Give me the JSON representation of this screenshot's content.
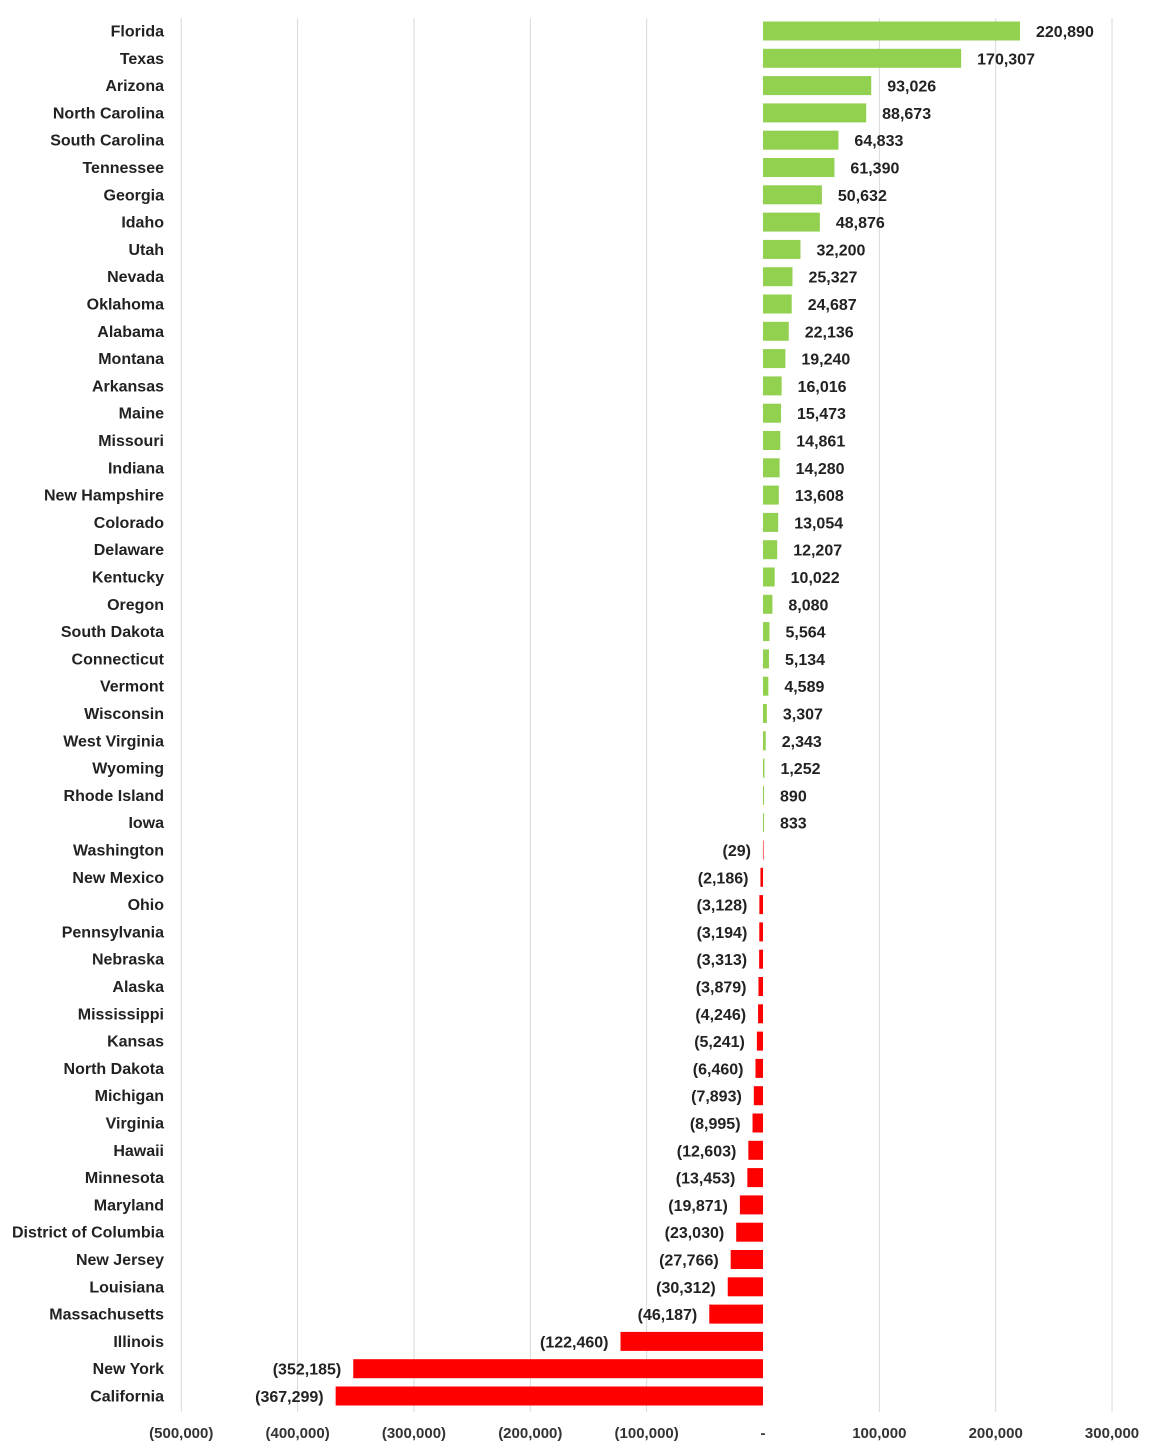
{
  "chart_data": {
    "type": "bar",
    "orientation": "horizontal",
    "title": "",
    "xlabel": "",
    "ylabel": "",
    "xlim": [
      -500000,
      300000
    ],
    "grid": true,
    "legend": "none",
    "colors": {
      "positive": "#92d050",
      "negative": "#ff0000"
    },
    "categories": [
      "Florida",
      "Texas",
      "Arizona",
      "North Carolina",
      "South Carolina",
      "Tennessee",
      "Georgia",
      "Idaho",
      "Utah",
      "Nevada",
      "Oklahoma",
      "Alabama",
      "Montana",
      "Arkansas",
      "Maine",
      "Missouri",
      "Indiana",
      "New Hampshire",
      "Colorado",
      "Delaware",
      "Kentucky",
      "Oregon",
      "South Dakota",
      "Connecticut",
      "Vermont",
      "Wisconsin",
      "West Virginia",
      "Wyoming",
      "Rhode Island",
      "Iowa",
      "Washington",
      "New Mexico",
      "Ohio",
      "Pennsylvania",
      "Nebraska",
      "Alaska",
      "Mississippi",
      "Kansas",
      "North Dakota",
      "Michigan",
      "Virginia",
      "Hawaii",
      "Minnesota",
      "Maryland",
      "District of Columbia",
      "New Jersey",
      "Louisiana",
      "Massachusetts",
      "Illinois",
      "New York",
      "California"
    ],
    "values": [
      220890,
      170307,
      93026,
      88673,
      64833,
      61390,
      50632,
      48876,
      32200,
      25327,
      24687,
      22136,
      19240,
      16016,
      15473,
      14861,
      14280,
      13608,
      13054,
      12207,
      10022,
      8080,
      5564,
      5134,
      4589,
      3307,
      2343,
      1252,
      890,
      833,
      -29,
      -2186,
      -3128,
      -3194,
      -3313,
      -3879,
      -4246,
      -5241,
      -6460,
      -7893,
      -8995,
      -12603,
      -13453,
      -19871,
      -23030,
      -27766,
      -30312,
      -46187,
      -122460,
      -352185,
      -367299
    ],
    "value_labels": [
      "220,890",
      "170,307",
      "93,026",
      "88,673",
      "64,833",
      "61,390",
      "50,632",
      "48,876",
      "32,200",
      "25,327",
      "24,687",
      "22,136",
      "19,240",
      "16,016",
      "15,473",
      "14,861",
      "14,280",
      "13,608",
      "13,054",
      "12,207",
      "10,022",
      "8,080",
      "5,564",
      "5,134",
      "4,589",
      "3,307",
      "2,343",
      "1,252",
      "890",
      "833",
      "(29)",
      "(2,186)",
      "(3,128)",
      "(3,194)",
      "(3,313)",
      "(3,879)",
      "(4,246)",
      "(5,241)",
      "(6,460)",
      "(7,893)",
      "(8,995)",
      "(12,603)",
      "(13,453)",
      "(19,871)",
      "(23,030)",
      "(27,766)",
      "(30,312)",
      "(46,187)",
      "(122,460)",
      "(352,185)",
      "(367,299)"
    ],
    "x_ticks": [
      -500000,
      -400000,
      -300000,
      -200000,
      -100000,
      0,
      100000,
      200000,
      300000
    ],
    "x_tick_labels": [
      "(500,000)",
      "(400,000)",
      "(300,000)",
      "(200,000)",
      "(100,000)",
      "-",
      "100,000",
      "200,000",
      "300,000"
    ]
  }
}
